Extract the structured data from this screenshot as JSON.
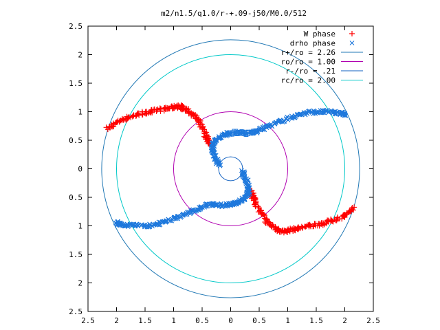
{
  "chart_data": {
    "type": "scatter",
    "title": "m2/n1.5/q1.0/r-+.09-j50/M0.0/512",
    "xlim": [
      -2.5,
      2.5
    ],
    "ylim": [
      -2.5,
      2.5
    ],
    "x_ticks": [
      -2.5,
      -2,
      -1.5,
      -1,
      -0.5,
      0,
      0.5,
      1,
      1.5,
      2,
      2.5
    ],
    "y_ticks": [
      -2.5,
      -2,
      -1.5,
      -1,
      -0.5,
      0,
      0.5,
      1,
      1.5,
      2,
      2.5
    ],
    "x_tick_labels": [
      "2.5",
      "2",
      "1.5",
      "1",
      "0.5",
      "0",
      "0.5",
      "1",
      "1.5",
      "2",
      "2.5"
    ],
    "y_tick_labels": [
      "2.5",
      "2",
      "1.5",
      "1",
      "0.5",
      "0",
      "0.5",
      "1",
      "1.5",
      "2",
      "2.5"
    ],
    "grid": false,
    "legend_position": "top-right",
    "series": [
      {
        "name": "W phase",
        "marker": "+",
        "color": "#ff0000",
        "arms": [
          {
            "x": [
              -2.15,
              -2.0,
              -1.8,
              -1.6,
              -1.4,
              -1.2,
              -1.05,
              -0.9,
              -0.8,
              -0.65,
              -0.55,
              -0.45,
              -0.4,
              -0.35
            ],
            "y": [
              0.7,
              0.82,
              0.9,
              0.96,
              1.0,
              1.04,
              1.07,
              1.1,
              1.05,
              0.95,
              0.8,
              0.62,
              0.5,
              0.4
            ]
          },
          {
            "x": [
              0.35,
              0.4,
              0.45,
              0.55,
              0.65,
              0.8,
              0.9,
              1.05,
              1.2,
              1.4,
              1.6,
              1.8,
              2.0,
              2.15
            ],
            "y": [
              -0.4,
              -0.5,
              -0.62,
              -0.8,
              -0.95,
              -1.05,
              -1.1,
              -1.07,
              -1.04,
              -1.0,
              -0.96,
              -0.9,
              -0.82,
              -0.7
            ]
          }
        ]
      },
      {
        "name": "drho phase",
        "marker": "x",
        "color": "#1e78dc",
        "arms": [
          {
            "x": [
              -0.2,
              -0.25,
              -0.3,
              -0.32,
              -0.28,
              -0.2,
              -0.1,
              0.0,
              0.15,
              0.3,
              0.45,
              0.6,
              0.8,
              1.0,
              1.2,
              1.4,
              1.6,
              1.8,
              1.95,
              2.0
            ],
            "y": [
              0.05,
              0.15,
              0.28,
              0.4,
              0.48,
              0.55,
              0.6,
              0.63,
              0.64,
              0.62,
              0.65,
              0.72,
              0.8,
              0.88,
              0.95,
              0.99,
              1.0,
              0.99,
              0.97,
              0.95
            ],
            "square_markers_from": 7
          },
          {
            "x": [
              0.2,
              0.25,
              0.3,
              0.32,
              0.28,
              0.2,
              0.1,
              0.0,
              -0.15,
              -0.3,
              -0.45,
              -0.6,
              -0.8,
              -1.0,
              -1.2,
              -1.4,
              -1.6,
              -1.8,
              -1.95,
              -2.0
            ],
            "y": [
              -0.05,
              -0.15,
              -0.28,
              -0.4,
              -0.48,
              -0.55,
              -0.6,
              -0.63,
              -0.64,
              -0.62,
              -0.65,
              -0.72,
              -0.8,
              -0.88,
              -0.95,
              -0.99,
              -1.0,
              -0.99,
              -0.97,
              -0.95
            ]
          }
        ]
      }
    ],
    "circles": [
      {
        "name": "r+/ro = 2.26",
        "radius": 2.26,
        "color": "#1f77b4"
      },
      {
        "name": "ro/ro = 1.00",
        "radius": 1.0,
        "color": "#b000b0"
      },
      {
        "name": "r-/ro = .21",
        "radius": 0.21,
        "color": "#1060c0"
      },
      {
        "name": "rc/ro = 2.00",
        "radius": 2.0,
        "color": "#00c8c8"
      }
    ]
  }
}
